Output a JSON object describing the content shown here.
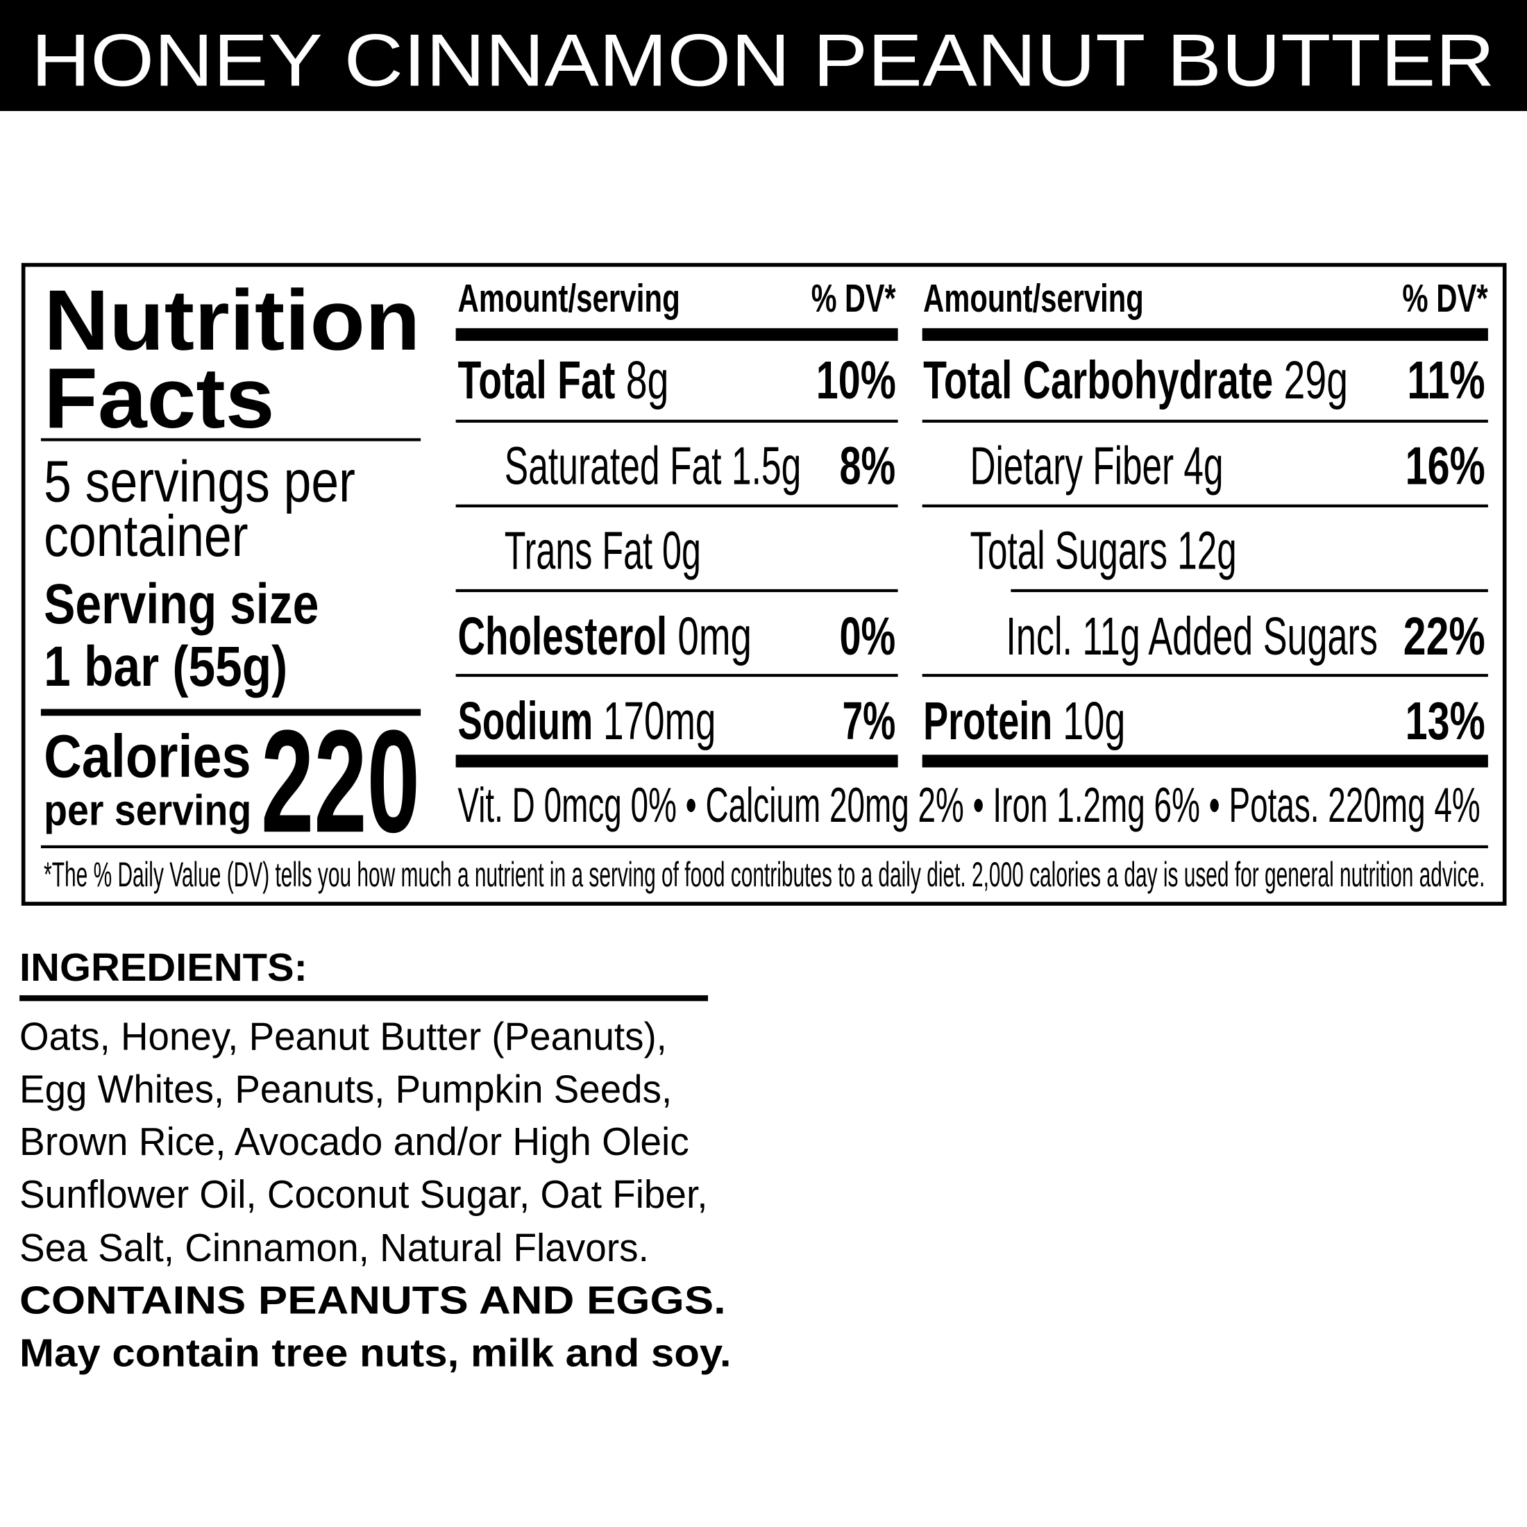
{
  "product_title": "HONEY CINNAMON PEANUT BUTTER",
  "nutrition": {
    "title_line1": "Nutrition",
    "title_line2": "Facts",
    "servings_line1": "5 servings per",
    "servings_line2": "container",
    "serving_size_label": "Serving size",
    "serving_size_value": "1 bar (55g)",
    "calories_label": "Calories",
    "calories_sublabel": "per serving",
    "calories_value": "220",
    "col_header_amount": "Amount/serving",
    "col_header_dv": "% DV*",
    "left_rows": [
      {
        "name": "Total Fat",
        "amount": "8g",
        "dv": "10%"
      },
      {
        "name": "Saturated Fat",
        "amount": "1.5g",
        "dv": "8%"
      },
      {
        "name": "Trans Fat",
        "amount": "0g",
        "dv": ""
      },
      {
        "name": "Cholesterol",
        "amount": "0mg",
        "dv": "0%"
      },
      {
        "name": "Sodium",
        "amount": "170mg",
        "dv": "7%"
      }
    ],
    "right_rows": [
      {
        "name": "Total Carbohydrate",
        "amount": "29g",
        "dv": "11%"
      },
      {
        "name": "Dietary Fiber",
        "amount": "4g",
        "dv": "16%"
      },
      {
        "name": "Total Sugars",
        "amount": "12g",
        "dv": ""
      },
      {
        "name": "Incl. 11g Added Sugars",
        "amount": "",
        "dv": "22%"
      },
      {
        "name": "Protein",
        "amount": "10g",
        "dv": "13%"
      }
    ],
    "vitamins": "Vit. D 0mcg 0% • Calcium 20mg 2% • Iron 1.2mg 6% • Potas. 220mg 4%",
    "footnote": "*The % Daily Value (DV) tells you how much a nutrient in a serving of food contributes to a daily diet. 2,000 calories a day is used for general nutrition advice."
  },
  "ingredients": {
    "heading": "INGREDIENTS:",
    "lines": [
      "Oats, Honey, Peanut Butter (Peanuts),",
      "Egg Whites, Peanuts, Pumpkin Seeds,",
      "Brown Rice, Avocado and/or High Oleic",
      "Sunflower Oil, Coconut Sugar, Oat Fiber,",
      "Sea Salt, Cinnamon, Natural Flavors."
    ],
    "contains": "CONTAINS PEANUTS AND EGGS.",
    "may_contain": "May contain tree nuts, milk and soy."
  }
}
